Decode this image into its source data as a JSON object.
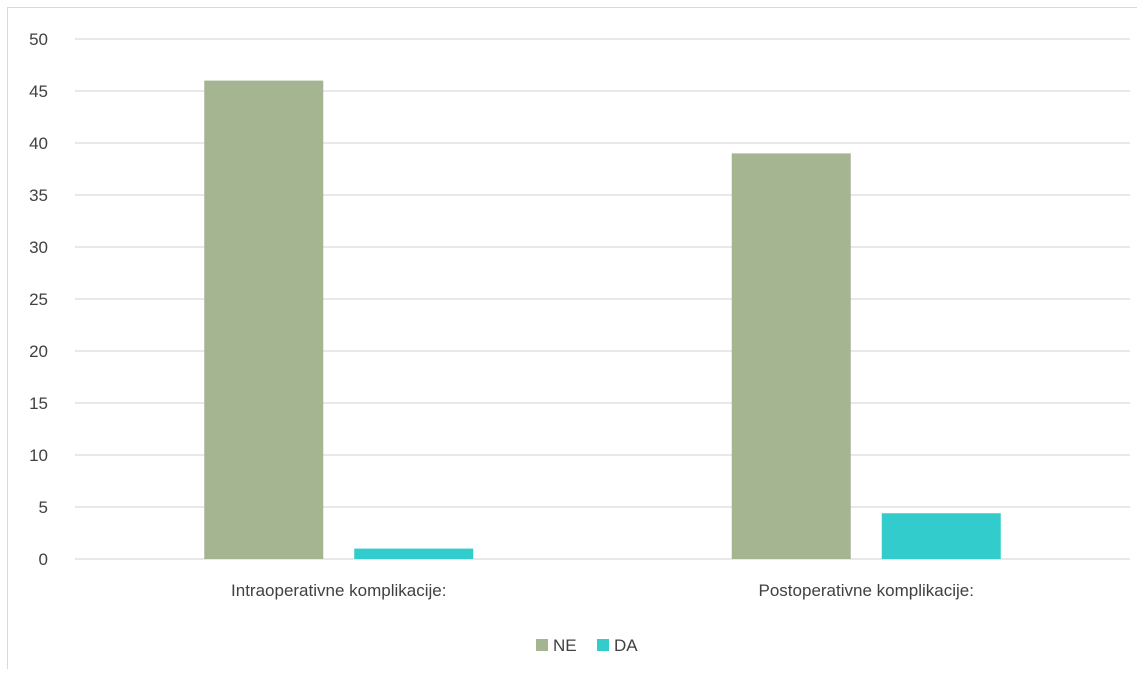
{
  "chart_data": {
    "type": "bar",
    "categories": [
      "Intraoperativne komplikacije:",
      "Postoperativne komplikacije:"
    ],
    "series": [
      {
        "name": "NE",
        "values": [
          46,
          39
        ],
        "color": "#a5b592"
      },
      {
        "name": "DA",
        "values": [
          1,
          4.4
        ],
        "color": "#33cccc"
      }
    ],
    "ylim": [
      0,
      50
    ],
    "yticks": [
      0,
      5,
      10,
      15,
      20,
      25,
      30,
      35,
      40,
      45,
      50
    ],
    "grid": true,
    "legend_position": "bottom",
    "title": "",
    "xlabel": "",
    "ylabel": ""
  }
}
